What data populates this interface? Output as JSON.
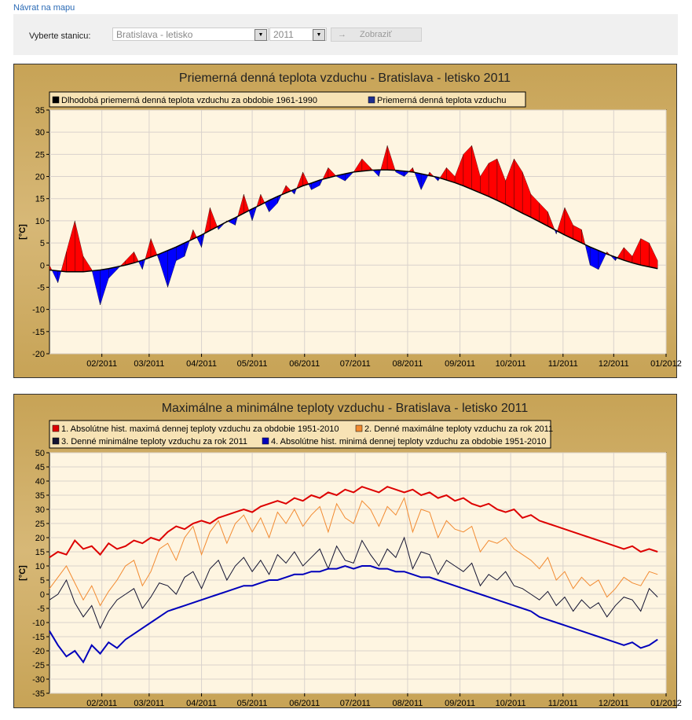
{
  "nav": {
    "back_link": "Návrat na mapu"
  },
  "filter": {
    "label": "Vyberte stanicu:",
    "station": "Bratislava - letisko",
    "year": "2011",
    "submit": "Zobraziť"
  },
  "chart_data": [
    {
      "type": "area",
      "title": "Priemerná denná teplota vzduchu - Bratislava - letisko 2011",
      "ylabel": "[°C]",
      "xlabel": "",
      "ylim": [
        -20,
        35
      ],
      "yticks": [
        35,
        30,
        25,
        20,
        15,
        10,
        5,
        0,
        -5,
        -10,
        -15,
        -20
      ],
      "x_step_days": 5,
      "xticks": [
        "02/2011",
        "03/2011",
        "04/2011",
        "05/2011",
        "06/2011",
        "07/2011",
        "08/2011",
        "09/2011",
        "10/2011",
        "11/2011",
        "12/2011",
        "01/2012"
      ],
      "month_start_days": [
        31,
        59,
        90,
        120,
        151,
        181,
        212,
        243,
        273,
        304,
        334,
        365
      ],
      "colors": {
        "above": "#ff0000",
        "below": "#0000ff"
      },
      "legend_position": "top",
      "series": [
        {
          "name": "Dlhodobá priemerná denná teplota vzduchu za obdobie 1961-1990",
          "color": "#000000",
          "values": [
            -1.1,
            -1.3,
            -1.5,
            -1.5,
            -1.5,
            -1.3,
            -1.1,
            -0.8,
            -0.4,
            0,
            0.5,
            1.1,
            1.8,
            2.5,
            3.3,
            4.1,
            5,
            5.9,
            6.8,
            7.8,
            8.8,
            9.8,
            10.7,
            11.7,
            12.7,
            13.6,
            14.6,
            15.5,
            16.3,
            17.1,
            17.9,
            18.5,
            19.2,
            19.7,
            20.2,
            20.6,
            21,
            21.2,
            21.4,
            21.5,
            21.5,
            21.4,
            21.2,
            21,
            20.6,
            20.2,
            19.8,
            19.2,
            18.6,
            17.9,
            17.1,
            16.3,
            15.5,
            14.6,
            13.7,
            12.7,
            11.7,
            10.8,
            9.8,
            8.8,
            7.8,
            6.8,
            5.9,
            5,
            4.1,
            3.3,
            2.5,
            1.8,
            1.1,
            0.5,
            0,
            -0.4,
            -0.8
          ]
        },
        {
          "name": "Priemerná denná teplota vzduchu",
          "color": "#1f2f8f",
          "values": [
            0,
            -4,
            3,
            10,
            2,
            -1,
            -9,
            -3,
            -1,
            1,
            3,
            -1,
            6,
            1,
            -5,
            1,
            2,
            8,
            4,
            13,
            8,
            10,
            9,
            16,
            10,
            16,
            12,
            14,
            18,
            16,
            21,
            17,
            18,
            22,
            20,
            19,
            21,
            24,
            22,
            20,
            27,
            21,
            20,
            22,
            17,
            21,
            19,
            22,
            20,
            25,
            27,
            20,
            23,
            24,
            19,
            24,
            21,
            16,
            14,
            12,
            7,
            13,
            9,
            8,
            0,
            -1,
            3,
            1,
            4,
            2,
            6,
            5,
            1
          ]
        }
      ]
    },
    {
      "type": "line",
      "title": "Maximálne a minimálne teploty vzduchu - Bratislava - letisko 2011",
      "ylabel": "[°C]",
      "xlabel": "",
      "ylim": [
        -35,
        50
      ],
      "yticks": [
        50,
        45,
        40,
        35,
        30,
        25,
        20,
        15,
        10,
        5,
        0,
        -5,
        -10,
        -15,
        -20,
        -25,
        -30,
        -35
      ],
      "x_step_days": 5,
      "xticks": [
        "02/2011",
        "03/2011",
        "04/2011",
        "05/2011",
        "06/2011",
        "07/2011",
        "08/2011",
        "09/2011",
        "10/2011",
        "11/2011",
        "12/2011",
        "01/2012"
      ],
      "month_start_days": [
        31,
        59,
        90,
        120,
        151,
        181,
        212,
        243,
        273,
        304,
        334,
        365
      ],
      "legend_position": "top",
      "series": [
        {
          "name": "1. Absolútne hist. maximá dennej teploty vzduchu za obdobie 1951-2010",
          "color": "#dd0000",
          "width": 2,
          "values": [
            13,
            15,
            14,
            19,
            16,
            17,
            14,
            18,
            16,
            17,
            19,
            18,
            20,
            19,
            22,
            24,
            23,
            25,
            26,
            25,
            27,
            28,
            29,
            30,
            29,
            31,
            32,
            33,
            32,
            34,
            33,
            35,
            34,
            36,
            35,
            37,
            36,
            38,
            37,
            36,
            38,
            37,
            36,
            37,
            35,
            36,
            34,
            35,
            33,
            34,
            32,
            31,
            32,
            30,
            29,
            30,
            27,
            28,
            26,
            25,
            24,
            23,
            22,
            21,
            20,
            19,
            18,
            17,
            16,
            17,
            15,
            16,
            15
          ]
        },
        {
          "name": "2. Denné maximálne teploty vzduchu za rok 2011",
          "color": "#f28a30",
          "width": 1,
          "values": [
            2,
            6,
            10,
            4,
            -2,
            3,
            -4,
            1,
            5,
            10,
            12,
            3,
            8,
            16,
            18,
            12,
            20,
            24,
            14,
            22,
            26,
            18,
            25,
            28,
            22,
            27,
            20,
            29,
            25,
            30,
            24,
            28,
            31,
            22,
            32,
            27,
            25,
            33,
            30,
            24,
            31,
            28,
            34,
            22,
            30,
            29,
            20,
            26,
            23,
            22,
            24,
            15,
            19,
            18,
            20,
            16,
            14,
            12,
            9,
            13,
            5,
            8,
            2,
            6,
            3,
            5,
            -1,
            2,
            6,
            4,
            3,
            8,
            7
          ]
        },
        {
          "name": "3. Denné minimálne teploty vzduchu za rok 2011",
          "color": "#141432",
          "width": 1,
          "values": [
            -2,
            0,
            5,
            -3,
            -8,
            -4,
            -12,
            -6,
            -2,
            0,
            2,
            -5,
            -1,
            4,
            3,
            0,
            6,
            8,
            2,
            9,
            12,
            5,
            10,
            13,
            8,
            12,
            7,
            14,
            11,
            15,
            10,
            13,
            16,
            9,
            17,
            12,
            11,
            19,
            14,
            10,
            16,
            13,
            20,
            9,
            15,
            14,
            7,
            12,
            10,
            8,
            11,
            3,
            7,
            5,
            8,
            3,
            2,
            0,
            -2,
            1,
            -4,
            -1,
            -6,
            -2,
            -5,
            -3,
            -8,
            -4,
            -1,
            -2,
            -6,
            2,
            -1
          ]
        },
        {
          "name": "4. Absolútne hist. minimá dennej teploty vzduchu za obdobie 1951-2010",
          "color": "#0000bb",
          "width": 2,
          "values": [
            -13,
            -18,
            -22,
            -20,
            -24,
            -18,
            -21,
            -17,
            -19,
            -16,
            -14,
            -12,
            -10,
            -8,
            -6,
            -5,
            -4,
            -3,
            -2,
            -1,
            0,
            1,
            2,
            3,
            3,
            4,
            5,
            5,
            6,
            7,
            7,
            8,
            8,
            9,
            9,
            10,
            9,
            10,
            10,
            9,
            9,
            8,
            8,
            7,
            6,
            6,
            5,
            4,
            3,
            2,
            1,
            0,
            -1,
            -2,
            -3,
            -4,
            -5,
            -6,
            -8,
            -9,
            -10,
            -11,
            -12,
            -13,
            -14,
            -15,
            -16,
            -17,
            -18,
            -17,
            -19,
            -18,
            -16
          ]
        }
      ]
    }
  ]
}
